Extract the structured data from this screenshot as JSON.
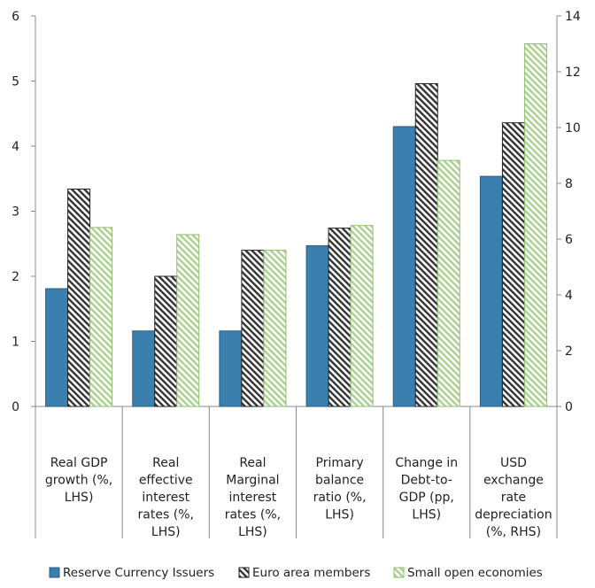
{
  "chart_data": {
    "type": "bar",
    "categories": [
      [
        "Real GDP",
        "growth (%,",
        "LHS)"
      ],
      [
        "Real",
        "effective",
        "interest",
        "rates (%,",
        "LHS)"
      ],
      [
        "Real",
        "Marginal",
        "interest",
        "rates (%,",
        "LHS)"
      ],
      [
        "Primary",
        "balance",
        "ratio (%,",
        "LHS)"
      ],
      [
        "Change in",
        "Debt-to-",
        "GDP (pp,",
        "LHS)"
      ],
      [
        "USD",
        "exchange",
        "rate",
        "depreciation",
        "(%, RHS)"
      ]
    ],
    "series": [
      {
        "name": "Reserve Currency Issuers",
        "values": [
          1.81,
          1.16,
          1.16,
          2.47,
          4.3,
          8.25
        ],
        "color": "#3a7fae"
      },
      {
        "name": "Euro area members",
        "values": [
          3.34,
          2.0,
          2.4,
          2.74,
          4.96,
          10.17
        ],
        "color": "#333333"
      },
      {
        "name": "Small open economies",
        "values": [
          2.75,
          2.64,
          2.4,
          2.78,
          3.78,
          13.0
        ],
        "color": "#a9d18e"
      }
    ],
    "axis_assignment": [
      "left",
      "left",
      "left",
      "left",
      "left",
      "right"
    ],
    "yticks_left": [
      "0",
      "1",
      "2",
      "3",
      "4",
      "5",
      "6"
    ],
    "yticks_right": [
      "0",
      "2",
      "4",
      "6",
      "8",
      "10",
      "12",
      "14"
    ],
    "ylim_left": [
      0,
      6
    ],
    "ylim_right": [
      0,
      14
    ],
    "grid": false,
    "legend_position": "bottom"
  }
}
